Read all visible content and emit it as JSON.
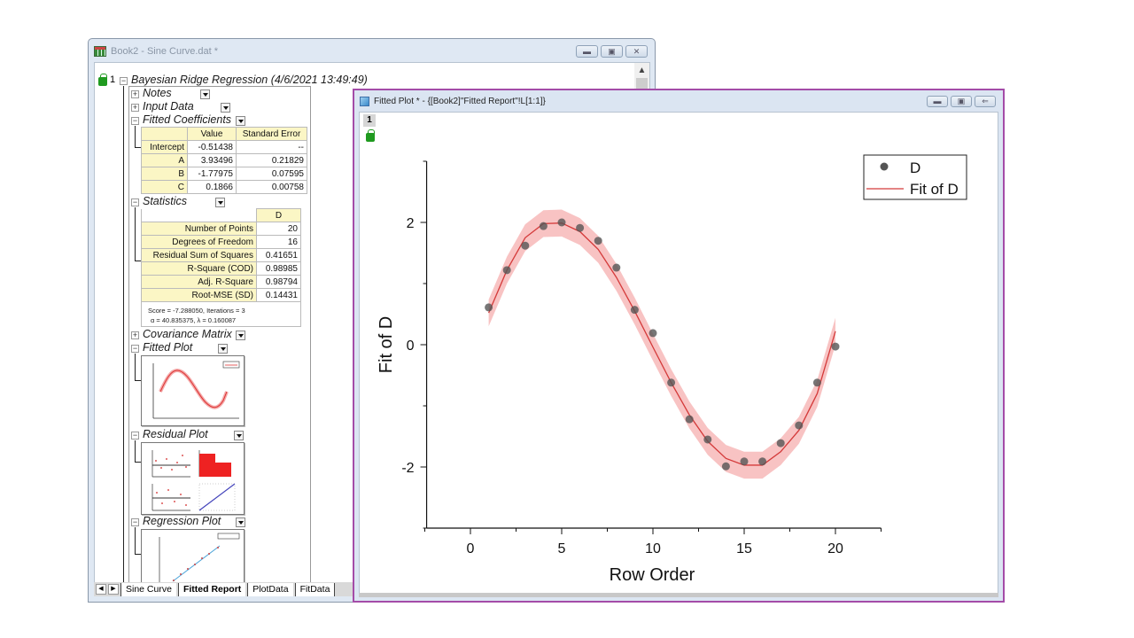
{
  "workbook": {
    "title": "Book2 - Sine Curve.dat *",
    "window_buttons": [
      "minimize",
      "restore",
      "close"
    ],
    "tree": {
      "row_number": "1",
      "root": "Bayesian Ridge Regression (4/6/2021 13:49:49)",
      "nodes": {
        "notes": "Notes",
        "input_data": "Input Data",
        "fitted_coefficients": "Fitted Coefficients",
        "statistics": "Statistics",
        "covariance_matrix": "Covariance Matrix",
        "fitted_plot": "Fitted Plot",
        "residual_plot": "Residual Plot",
        "regression_plot": "Regression Plot"
      }
    },
    "coefficients": {
      "headers": [
        "",
        "Value",
        "Standard Error"
      ],
      "rows": [
        {
          "name": "Intercept",
          "value": "-0.51438",
          "se": "--"
        },
        {
          "name": "A",
          "value": "3.93496",
          "se": "0.21829"
        },
        {
          "name": "B",
          "value": "-1.77975",
          "se": "0.07595"
        },
        {
          "name": "C",
          "value": "0.1866",
          "se": "0.00758"
        }
      ]
    },
    "statistics": {
      "header": "D",
      "rows": [
        {
          "name": "Number of Points",
          "value": "20"
        },
        {
          "name": "Degrees of Freedom",
          "value": "16"
        },
        {
          "name": "Residual Sum of Squares",
          "value": "0.41651"
        },
        {
          "name": "R-Square (COD)",
          "value": "0.98985"
        },
        {
          "name": "Adj. R-Square",
          "value": "0.98794"
        },
        {
          "name": "Root-MSE (SD)",
          "value": "0.14431"
        }
      ],
      "note_line1": "Score = -7.288050, Iterations = 3",
      "note_line2": "α = 40.835375,   λ = 0.160087"
    },
    "sheet_tabs": [
      "Sine Curve",
      "Fitted Report",
      "PlotData",
      "FitData"
    ],
    "active_sheet": "Fitted Report"
  },
  "graph_window": {
    "title": "Fitted Plot * - {[Book2]\"Fitted Report\"!L[1:1]}",
    "layer_number": "1",
    "window_buttons": [
      "minimize",
      "restore",
      "restore-down"
    ]
  },
  "chart_data": {
    "type": "scatter",
    "title": "",
    "xlabel": "Row Order",
    "ylabel": "Fit of D",
    "xlim": [
      -2.4,
      22.5
    ],
    "ylim": [
      -3,
      3
    ],
    "xticks": [
      0,
      5,
      10,
      15,
      20
    ],
    "yticks": [
      -2,
      0,
      2
    ],
    "grid": false,
    "legend": {
      "position": "top-right",
      "entries": [
        "D",
        "Fit of D"
      ]
    },
    "colors": {
      "scatter": "#555555",
      "fit_line": "#d43a3a",
      "band": "#f7b8b8"
    },
    "x": [
      1,
      2,
      3,
      4,
      5,
      6,
      7,
      8,
      9,
      10,
      11,
      12,
      13,
      14,
      15,
      16,
      17,
      18,
      19,
      20
    ],
    "series": [
      {
        "name": "D",
        "kind": "scatter",
        "values": [
          0.61,
          1.22,
          1.62,
          1.94,
          2.0,
          1.91,
          1.7,
          1.26,
          0.57,
          0.19,
          -0.62,
          -1.22,
          -1.55,
          -1.99,
          -1.91,
          -1.91,
          -1.61,
          -1.32,
          -0.62,
          -0.03
        ]
      },
      {
        "name": "Fit of D",
        "kind": "line",
        "values": [
          0.52,
          1.22,
          1.75,
          1.98,
          1.99,
          1.85,
          1.56,
          1.1,
          0.55,
          -0.04,
          -0.62,
          -1.15,
          -1.58,
          -1.86,
          -1.97,
          -1.97,
          -1.75,
          -1.4,
          -0.8,
          0.22
        ],
        "band_halfwidth": 0.22
      }
    ]
  }
}
